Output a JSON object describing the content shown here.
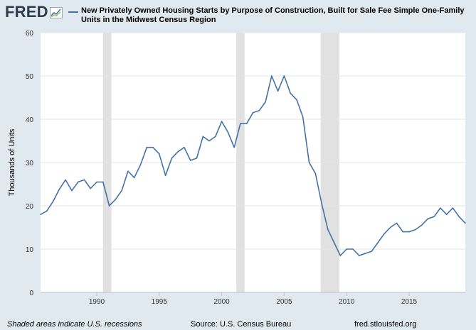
{
  "app": {
    "logo_text": "FRED",
    "logo_icon": "fred-chart-icon",
    "footer_note": "Shaded areas indicate U.S. recessions",
    "footer_source": "Source: U.S. Census Bureau",
    "footer_url": "fred.stlouisfed.org"
  },
  "colors": {
    "background": "#e1e9f0",
    "plot_background": "#ffffff",
    "series": "#4572a7",
    "recession": "#e1e1e1",
    "grid": "#e5e5e5",
    "axis_text": "#333333",
    "logo": "#2f3d4b"
  },
  "chart_data": {
    "type": "line",
    "title": "New Privately Owned Housing Starts by Purpose of Construction, Built for Sale Fee Simple One-Family Units in the Midwest Census Region",
    "ylabel": "Thousands of Units",
    "xlabel": "",
    "xlim": [
      1985.5,
      2019.5
    ],
    "ylim": [
      0,
      60
    ],
    "y_ticks": [
      0,
      10,
      20,
      30,
      40,
      50,
      60
    ],
    "x_ticks": [
      1990,
      1995,
      2000,
      2005,
      2010,
      2015
    ],
    "grid": true,
    "legend_position": "top",
    "recessions": [
      [
        1990.5,
        1991.17
      ],
      [
        2001.17,
        2001.83
      ],
      [
        2007.92,
        2009.42
      ]
    ],
    "series": [
      {
        "name": "New Privately Owned Housing Starts by Purpose of Construction, Built for Sale Fee Simple One-Family Units in the Midwest Census Region",
        "x": [
          1985.5,
          1986.0,
          1986.5,
          1987.0,
          1987.5,
          1988.0,
          1988.5,
          1989.0,
          1989.5,
          1990.0,
          1990.5,
          1991.0,
          1991.5,
          1992.0,
          1992.5,
          1993.0,
          1993.5,
          1994.0,
          1994.5,
          1995.0,
          1995.5,
          1996.0,
          1996.5,
          1997.0,
          1997.5,
          1998.0,
          1998.5,
          1999.0,
          1999.5,
          2000.0,
          2000.5,
          2001.0,
          2001.5,
          2002.0,
          2002.5,
          2003.0,
          2003.5,
          2004.0,
          2004.5,
          2005.0,
          2005.5,
          2006.0,
          2006.5,
          2007.0,
          2007.5,
          2008.0,
          2008.5,
          2009.0,
          2009.5,
          2010.0,
          2010.5,
          2011.0,
          2011.5,
          2012.0,
          2012.5,
          2013.0,
          2013.5,
          2014.0,
          2014.5,
          2015.0,
          2015.5,
          2016.0,
          2016.5,
          2017.0,
          2017.5,
          2018.0,
          2018.5,
          2019.0,
          2019.5
        ],
        "values": [
          18.0,
          18.8,
          21.0,
          23.8,
          26.0,
          23.5,
          25.5,
          26.0,
          24.0,
          25.5,
          25.5,
          20.0,
          21.5,
          23.5,
          28.0,
          26.5,
          29.5,
          33.5,
          33.5,
          32.0,
          27.0,
          31.0,
          32.5,
          33.5,
          30.5,
          31.0,
          36.0,
          35.0,
          36.0,
          39.5,
          37.0,
          33.5,
          39.0,
          39.0,
          41.5,
          42.0,
          44.0,
          50.0,
          46.5,
          50.0,
          46.0,
          44.5,
          40.5,
          30.0,
          27.5,
          20.5,
          14.5,
          11.5,
          8.5,
          10.0,
          10.0,
          8.5,
          9.0,
          9.5,
          11.5,
          13.5,
          15.0,
          16.0,
          14.0,
          14.0,
          14.5,
          15.5,
          17.0,
          17.5,
          19.5,
          18.0,
          19.5,
          17.5,
          16.0
        ]
      }
    ]
  }
}
